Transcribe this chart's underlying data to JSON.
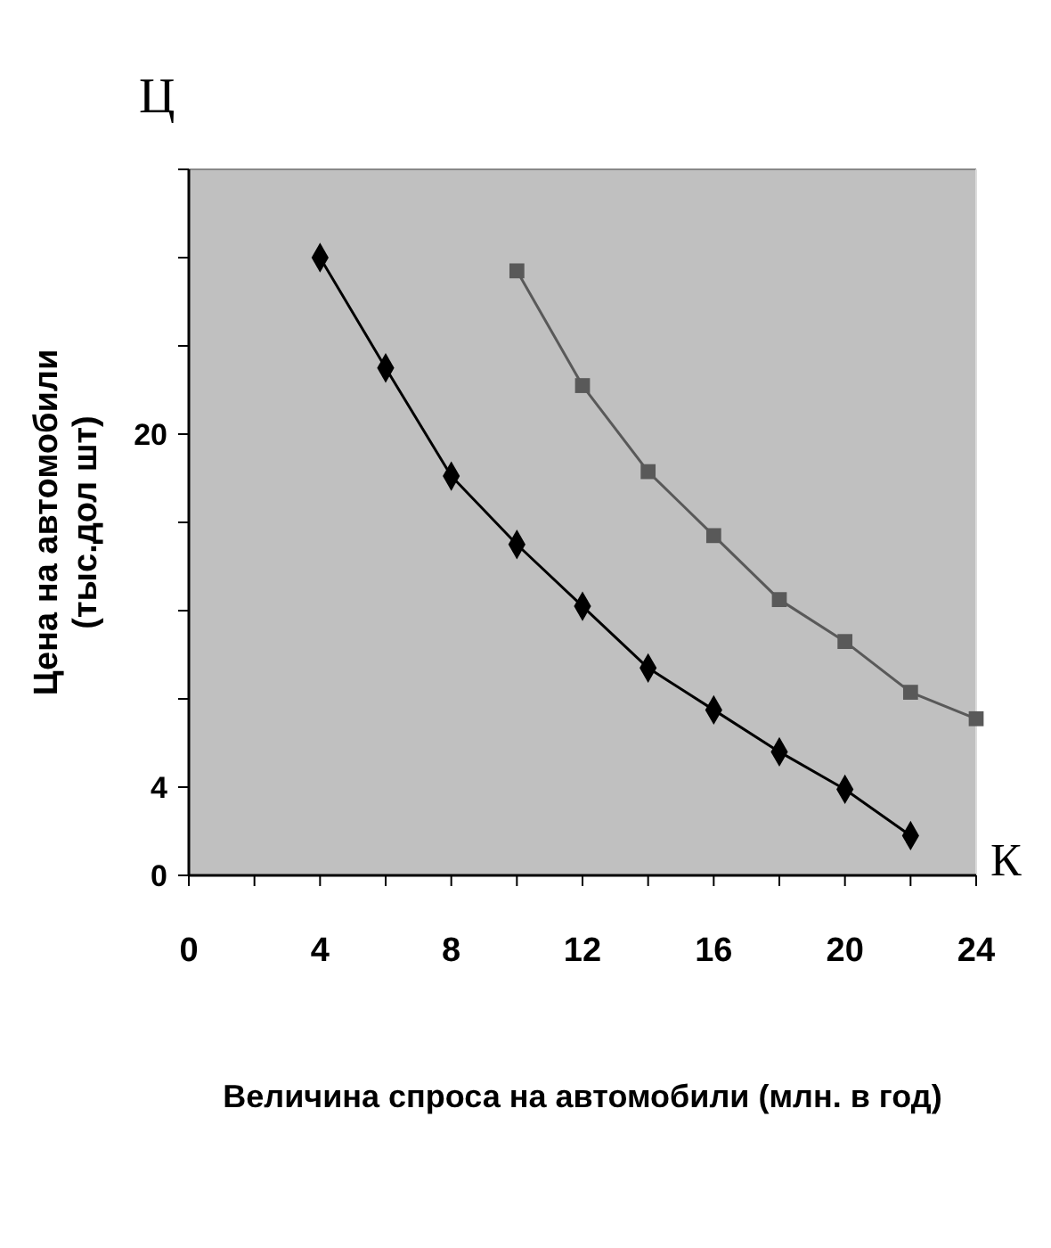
{
  "chart_data": {
    "type": "line",
    "xlabel": "Величина спроса на автомобили (млн. в год)",
    "ylabel": "Цена на автомобили (тыс.дол шт)",
    "annotations": [
      "Ц",
      "К"
    ],
    "xlim": [
      0,
      24
    ],
    "xticks": [
      0,
      {
        "value": 2,
        "label": null
      },
      4,
      {
        "value": 6,
        "label": null
      },
      8,
      {
        "value": 10,
        "label": null
      },
      12,
      {
        "value": 14,
        "label": null
      },
      16,
      {
        "value": 18,
        "label": null
      },
      20,
      {
        "value": 22,
        "label": null
      },
      24
    ],
    "ylim": [
      0,
      32
    ],
    "yticks": [
      0,
      4,
      {
        "value": 8,
        "label": null
      },
      {
        "value": 12,
        "label": null
      },
      {
        "value": 16,
        "label": null
      },
      20,
      {
        "value": 24,
        "label": null
      },
      {
        "value": 28,
        "label": null
      },
      {
        "value": 32,
        "label": null
      }
    ],
    "grid": false,
    "line_style": "solid",
    "series": [
      {
        "color": "#000000",
        "marker": "diamond",
        "x": [
          4,
          6,
          8,
          10,
          12,
          14,
          16,
          18,
          20,
          22
        ],
        "values": [
          28.0,
          23.0,
          18.1,
          15.0,
          12.2,
          9.4,
          7.5,
          5.6,
          3.9,
          1.8
        ]
      },
      {
        "color": "#595959",
        "marker": "square",
        "x": [
          10,
          12,
          14,
          16,
          18,
          20,
          22,
          24
        ],
        "values": [
          27.4,
          22.2,
          18.3,
          15.4,
          12.5,
          10.6,
          8.3,
          7.1
        ]
      }
    ]
  }
}
